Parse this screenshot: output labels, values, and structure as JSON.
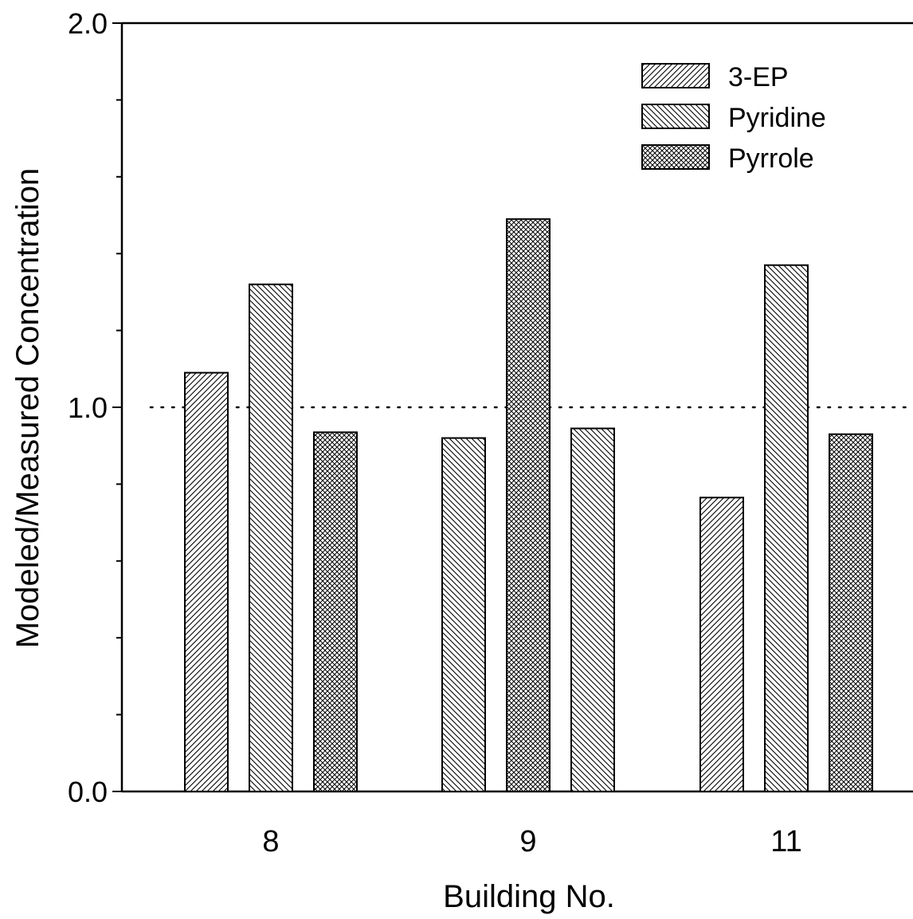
{
  "chart_data": {
    "type": "bar",
    "xlabel": "Building No.",
    "ylabel": "Modeled/Measured Concentration",
    "ylim": [
      0,
      2
    ],
    "y_ticks": [
      "0.0",
      "1.0",
      "2.0"
    ],
    "y_minor_step": 0.2,
    "reference_line": {
      "y": 1.0,
      "style": "dotted"
    },
    "legend_position": "top-right",
    "groups": [
      {
        "label": "8",
        "bars": [
          {
            "pattern": "diag-right",
            "value": 1.09
          },
          {
            "pattern": "diag-left",
            "value": 1.32
          },
          {
            "pattern": "crosshatch",
            "value": 0.935
          }
        ]
      },
      {
        "label": "9",
        "bars": [
          {
            "pattern": "diag-left",
            "value": 0.92
          },
          {
            "pattern": "crosshatch",
            "value": 1.49
          },
          {
            "pattern": "diag-left",
            "value": 0.945
          }
        ]
      },
      {
        "label": "11",
        "bars": [
          {
            "pattern": "diag-right",
            "value": 0.765
          },
          {
            "pattern": "diag-left",
            "value": 1.37
          },
          {
            "pattern": "crosshatch",
            "value": 0.93
          }
        ]
      }
    ],
    "legend": [
      {
        "label": "3-EP",
        "pattern": "diag-right"
      },
      {
        "label": "Pyridine",
        "pattern": "diag-left"
      },
      {
        "label": "Pyrrole",
        "pattern": "crosshatch"
      }
    ]
  }
}
